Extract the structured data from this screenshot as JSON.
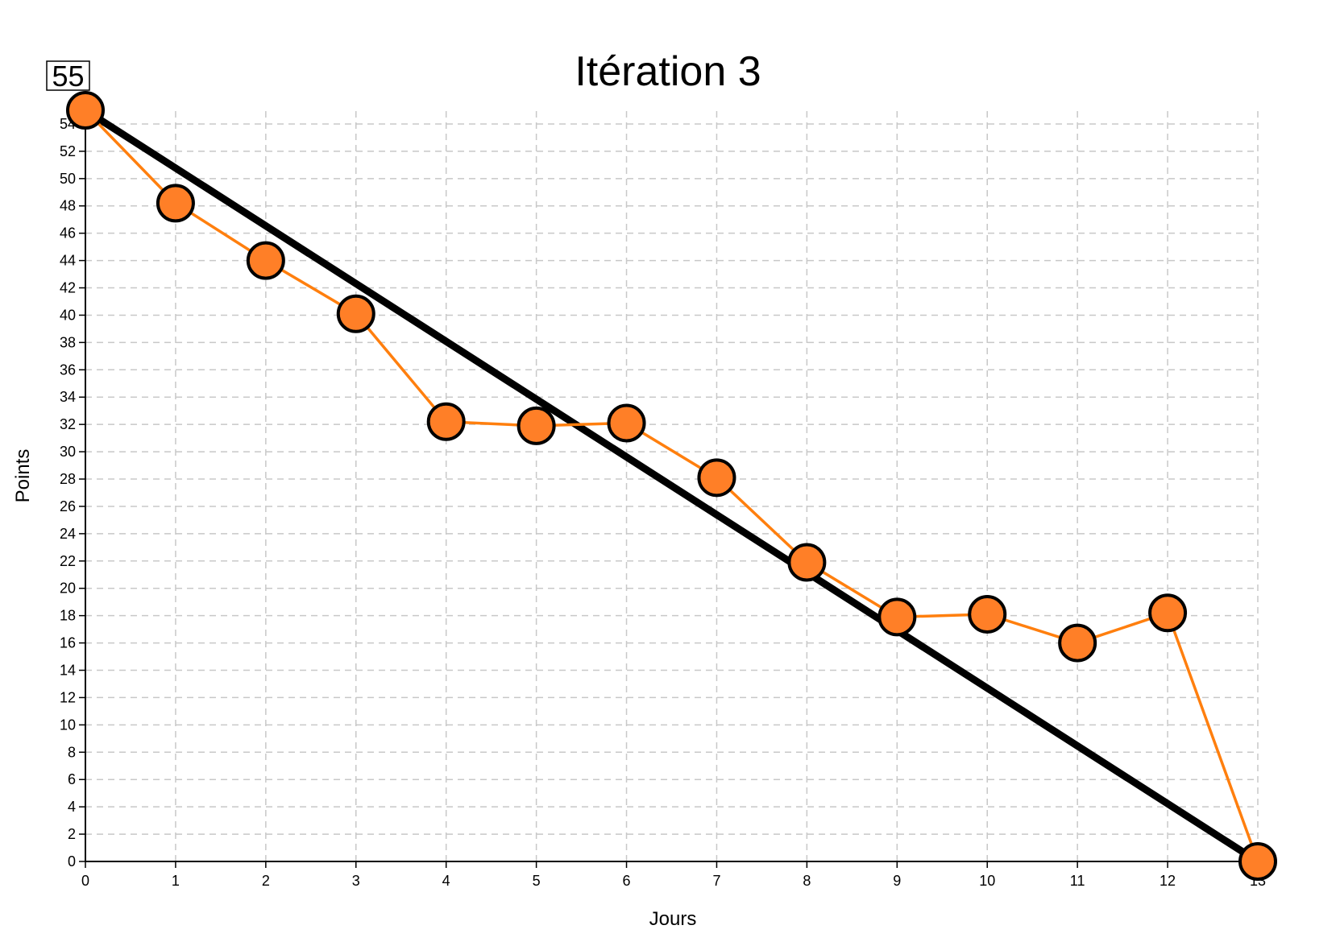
{
  "total_badge": "55",
  "chart_data": {
    "type": "line",
    "title": "Itération 3",
    "xlabel": "Jours",
    "ylabel": "Points",
    "xlim": [
      0,
      13
    ],
    "ylim": [
      0,
      55
    ],
    "x_ticks": [
      0,
      1,
      2,
      3,
      4,
      5,
      6,
      7,
      8,
      9,
      10,
      11,
      12,
      13
    ],
    "y_ticks": [
      0,
      2,
      4,
      6,
      8,
      10,
      12,
      14,
      16,
      18,
      20,
      22,
      24,
      26,
      28,
      30,
      32,
      34,
      36,
      38,
      40,
      42,
      44,
      46,
      48,
      50,
      52,
      54
    ],
    "grid": true,
    "ideal": {
      "x": [
        0,
        13
      ],
      "y": [
        55,
        0
      ],
      "color": "#000000"
    },
    "actual": {
      "x": [
        0,
        1,
        2,
        3,
        4,
        5,
        6,
        7,
        8,
        9,
        10,
        11,
        12,
        13
      ],
      "y": [
        55,
        48.2,
        44,
        40.1,
        32.2,
        31.9,
        32.1,
        28.1,
        21.9,
        17.9,
        18.1,
        16,
        18.2,
        0
      ],
      "line_color": "#ff7f0e",
      "marker_fill": "#ff7f27",
      "marker_stroke": "#000000"
    }
  }
}
